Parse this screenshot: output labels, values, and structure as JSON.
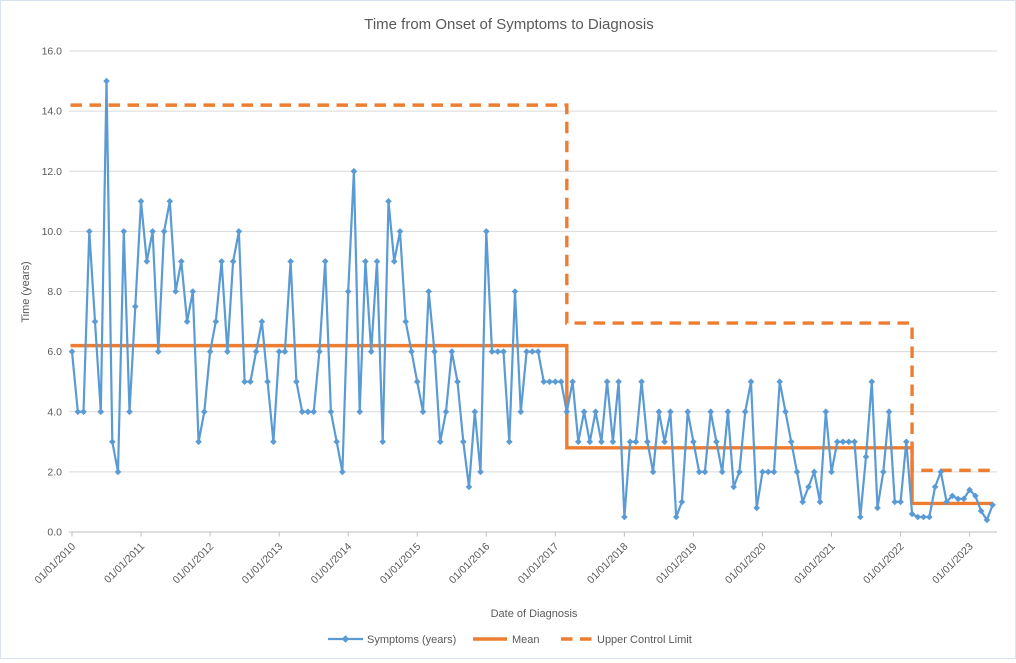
{
  "window": {
    "background": "#FFFFFF",
    "border_color": "#D9E2F1"
  },
  "colors": {
    "series_blue": "#5B9BD5",
    "orange": "#ED7D31",
    "gridline": "#D9D9D9",
    "axis_line": "#BFBFBF",
    "text": "#595959"
  },
  "chart_data": {
    "type": "line",
    "title": "Time from Onset of Symptoms to Diagnosis",
    "xlabel": "Date of Diagnosis",
    "ylabel": "Time (years)",
    "ylim": [
      0,
      16
    ],
    "ytick_step": 2,
    "grid": "horizontal",
    "legend_position": "bottom",
    "y_tick_labels": [
      "0.0",
      "2.0",
      "4.0",
      "6.0",
      "8.0",
      "10.0",
      "12.0",
      "14.0",
      "16.0"
    ],
    "x_tick_labels": [
      "01/01/2010",
      "01/01/2011",
      "01/01/2012",
      "01/01/2013",
      "01/01/2014",
      "01/01/2015",
      "01/01/2016",
      "01/01/2017",
      "01/01/2018",
      "01/01/2019",
      "01/01/2020",
      "01/01/2021",
      "01/01/2022",
      "01/01/2023"
    ],
    "x_start_month": "01/2010",
    "x_frequency": "monthly",
    "series": [
      {
        "name": "Symptoms (years)",
        "color": "#5B9BD5",
        "marker": "diamond",
        "style": "solid",
        "values": [
          6,
          4,
          4,
          10,
          7,
          4,
          15,
          3,
          2,
          10,
          4,
          7.5,
          11,
          9,
          10,
          6,
          10,
          11,
          8,
          9,
          7,
          8,
          3,
          4,
          6,
          7,
          9,
          6,
          9,
          10,
          5,
          5,
          6,
          7,
          5,
          3,
          6,
          6,
          9,
          5,
          4,
          4,
          4,
          6,
          9,
          4,
          3,
          2,
          8,
          12,
          4,
          9,
          6,
          9,
          3,
          11,
          9,
          10,
          7,
          6,
          5,
          4,
          8,
          6,
          3,
          4,
          6,
          5,
          3,
          1.5,
          4,
          2,
          10,
          6,
          6,
          6,
          3,
          8,
          4,
          6,
          6,
          6,
          5,
          5,
          5,
          5,
          4,
          5,
          3,
          4,
          3,
          4,
          3,
          5,
          3,
          5,
          0.5,
          3,
          3,
          5,
          3,
          2,
          4,
          3,
          4,
          0.5,
          1,
          4,
          3,
          2,
          2,
          4,
          3,
          2,
          4,
          1.5,
          2,
          4,
          5,
          0.8,
          2,
          2,
          2,
          5,
          4,
          3,
          2,
          1,
          1.5,
          2,
          1,
          4,
          2,
          3,
          3,
          3,
          3,
          0.5,
          2.5,
          5,
          0.8,
          2,
          4,
          1,
          1,
          3,
          0.6,
          0.5,
          0.5,
          0.5,
          1.5,
          2,
          1,
          1.2,
          1.1,
          1.1,
          1.4,
          1.2,
          0.7,
          0.4,
          0.9
        ]
      },
      {
        "name": "Mean",
        "color": "#ED7D31",
        "style": "solid",
        "segments": [
          {
            "start_index": 0,
            "end_index": 86,
            "value": 6.2
          },
          {
            "start_index": 86,
            "end_index": 146,
            "value": 2.8
          },
          {
            "start_index": 146,
            "end_index": 160,
            "value": 0.95
          }
        ]
      },
      {
        "name": "Upper Control Limit",
        "color": "#ED7D31",
        "style": "dashed",
        "segments": [
          {
            "start_index": 0,
            "end_index": 86,
            "value": 14.2
          },
          {
            "start_index": 86,
            "end_index": 146,
            "value": 6.95
          },
          {
            "start_index": 146,
            "end_index": 160,
            "value": 2.05
          }
        ]
      }
    ]
  }
}
